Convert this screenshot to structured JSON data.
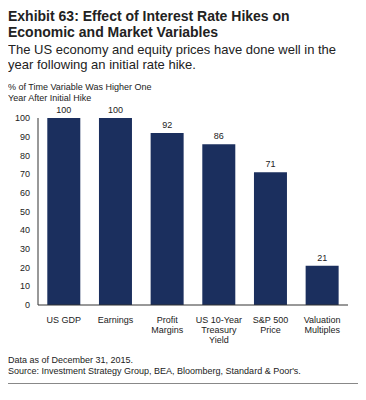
{
  "chart_data": {
    "type": "bar",
    "title": "Exhibit 63: Effect of Interest Rate Hikes on Economic and Market Variables",
    "subtitle": "The US economy and equity prices have done well in the year following an initial rate hike.",
    "y_label": "% of Time Variable Was Higher One Year After Initial Hike",
    "categories": [
      "US GDP",
      "Earnings",
      "Profit Margins",
      "US 10-Year Treasury Yield",
      "S&P 500 Price",
      "Valuation Multiples"
    ],
    "values": [
      100,
      100,
      92,
      86,
      71,
      21
    ],
    "color": "#1b2f5e",
    "ylim": [
      0,
      100
    ],
    "yticks": [
      0,
      10,
      20,
      30,
      40,
      50,
      60,
      70,
      80,
      90,
      100
    ],
    "data_labels": true,
    "grid": false,
    "notes": [
      "Data as of December 31, 2015.",
      "Source: Investment Strategy Group, BEA, Bloomberg, Standard & Poor's."
    ]
  }
}
